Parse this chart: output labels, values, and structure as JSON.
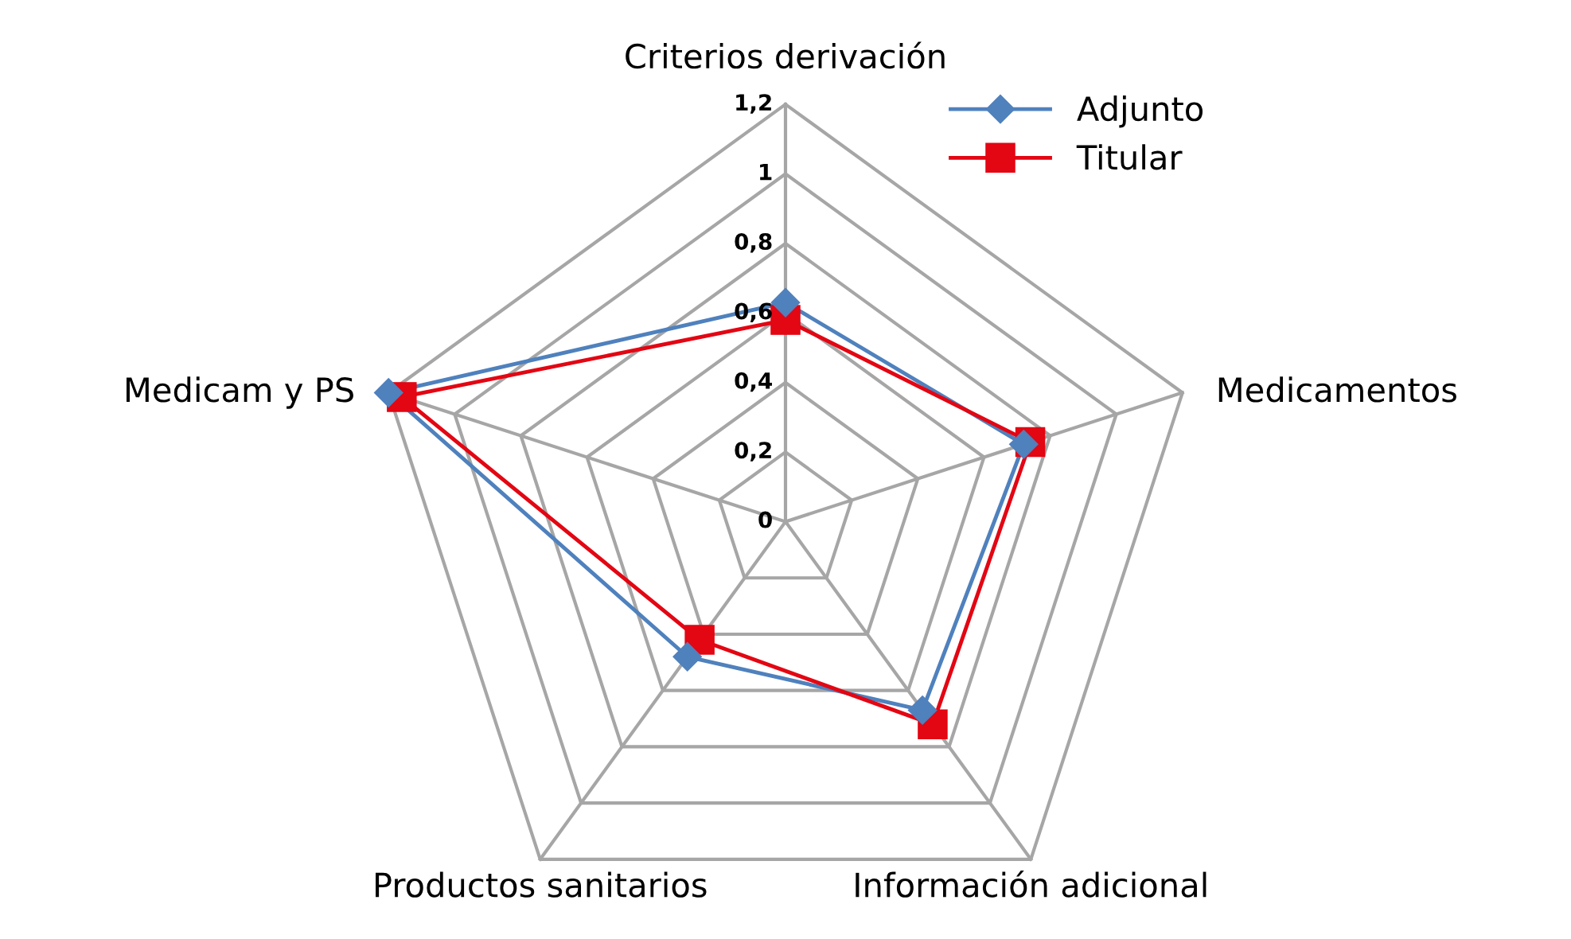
{
  "chart_data": {
    "type": "radar",
    "categories": [
      "Criterios derivación",
      "Medicamentos",
      "Información adicional",
      "Productos sanitarios",
      "Medicam y PS"
    ],
    "series": [
      {
        "name": "Adjunto",
        "color": "#4f81bd",
        "marker": "diamond",
        "values": [
          0.63,
          0.72,
          0.67,
          0.48,
          1.2
        ]
      },
      {
        "name": "Titular",
        "color": "#e30613",
        "marker": "square",
        "values": [
          0.58,
          0.74,
          0.72,
          0.42,
          1.16
        ]
      }
    ],
    "ylim": [
      0,
      1.2
    ],
    "yticks": [
      {
        "value": 0,
        "label": "0"
      },
      {
        "value": 0.2,
        "label": "0,2"
      },
      {
        "value": 0.4,
        "label": "0,4"
      },
      {
        "value": 0.6,
        "label": "0,6"
      },
      {
        "value": 0.8,
        "label": "0,8"
      },
      {
        "value": 1,
        "label": "1"
      },
      {
        "value": 1.2,
        "label": "1,2"
      }
    ],
    "grid": true,
    "legend": "top right"
  }
}
